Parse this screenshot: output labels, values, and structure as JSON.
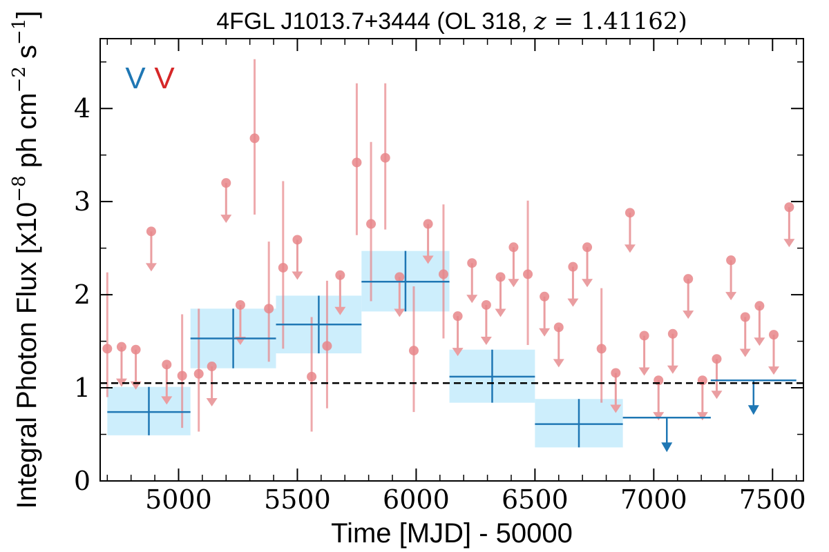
{
  "chart_data": {
    "type": "scatter",
    "title_parts": [
      "4FGL J1013.7+3444 (OL 318, ",
      "z",
      " = 1.41162)"
    ],
    "xlabel": "Time [MJD] - 50000",
    "ylabel_parts": [
      "Integral Photon Flux [x10",
      "−8",
      " ph cm",
      "−2",
      " s",
      "−1",
      "]"
    ],
    "xlim": [
      4670,
      7630
    ],
    "ylim": [
      0,
      4.75
    ],
    "x_ticks": [
      5000,
      5500,
      6000,
      6500,
      7000,
      7500
    ],
    "y_ticks": [
      0,
      1,
      2,
      3,
      4
    ],
    "x_tick_labels": [
      "5000",
      "5500",
      "6000",
      "6500",
      "7000",
      "7500"
    ],
    "y_tick_labels": [
      "0",
      "1",
      "2",
      "3",
      "4"
    ],
    "reference_line": {
      "y": 1.05,
      "style": "dashed",
      "color": "#000000"
    },
    "legend": [
      {
        "label": "V",
        "color": "#1f77b4"
      },
      {
        "label": "V",
        "color": "#d62728"
      }
    ],
    "colors": {
      "binned": "#1f77b4",
      "binned_fill": "#cdeefc",
      "short": "#e8868a",
      "short_arrow": "#ea9ea1"
    },
    "series": [
      {
        "resolution": "binned",
        "detections": [
          {
            "x0": 4700,
            "x1": 5050,
            "y": 0.74,
            "ylo": 0.49,
            "yhi": 1.01
          },
          {
            "x0": 5050,
            "x1": 5410,
            "y": 1.53,
            "ylo": 1.21,
            "yhi": 1.85
          },
          {
            "x0": 5410,
            "x1": 5770,
            "y": 1.68,
            "ylo": 1.37,
            "yhi": 1.99
          },
          {
            "x0": 5770,
            "x1": 6140,
            "y": 2.14,
            "ylo": 1.82,
            "yhi": 2.47
          },
          {
            "x0": 6140,
            "x1": 6500,
            "y": 1.12,
            "ylo": 0.84,
            "yhi": 1.41
          },
          {
            "x0": 6500,
            "x1": 6870,
            "y": 0.61,
            "ylo": 0.36,
            "yhi": 0.88
          }
        ],
        "upper_limits": [
          {
            "x0": 6870,
            "x1": 7240,
            "y": 0.68
          },
          {
            "x0": 7240,
            "x1": 7600,
            "y": 1.08
          }
        ]
      },
      {
        "resolution": "short",
        "detections": [
          {
            "x": 4700,
            "y": 1.42,
            "ylo": 0.9,
            "yhi": 2.24
          },
          {
            "x": 5015,
            "y": 1.13,
            "ylo": 0.57,
            "yhi": 1.79
          },
          {
            "x": 5085,
            "y": 1.15,
            "ylo": 0.53,
            "yhi": 1.85
          },
          {
            "x": 5320,
            "y": 3.68,
            "ylo": 2.86,
            "yhi": 4.53
          },
          {
            "x": 5380,
            "y": 1.85,
            "ylo": 1.28,
            "yhi": 2.57
          },
          {
            "x": 5440,
            "y": 2.29,
            "ylo": 1.42,
            "yhi": 3.22
          },
          {
            "x": 5560,
            "y": 1.12,
            "ylo": 0.53,
            "yhi": 1.76
          },
          {
            "x": 5625,
            "y": 1.45,
            "ylo": 0.78,
            "yhi": 2.15
          },
          {
            "x": 5750,
            "y": 3.42,
            "ylo": 2.64,
            "yhi": 4.27
          },
          {
            "x": 5810,
            "y": 2.76,
            "ylo": 1.93,
            "yhi": 3.64
          },
          {
            "x": 5870,
            "y": 3.47,
            "ylo": 2.7,
            "yhi": 4.27
          },
          {
            "x": 5990,
            "y": 1.4,
            "ylo": 0.74,
            "yhi": 2.09
          },
          {
            "x": 6115,
            "y": 2.22,
            "ylo": 1.53,
            "yhi": 2.97
          },
          {
            "x": 6470,
            "y": 2.22,
            "ylo": 1.46,
            "yhi": 3.01
          },
          {
            "x": 6780,
            "y": 1.42,
            "ylo": 0.84,
            "yhi": 2.07
          }
        ],
        "upper_limits": [
          {
            "x": 4760,
            "y": 1.44
          },
          {
            "x": 4820,
            "y": 1.41
          },
          {
            "x": 4885,
            "y": 2.68
          },
          {
            "x": 4950,
            "y": 1.25
          },
          {
            "x": 5140,
            "y": 1.23
          },
          {
            "x": 5200,
            "y": 3.2
          },
          {
            "x": 5260,
            "y": 1.89
          },
          {
            "x": 5500,
            "y": 2.59
          },
          {
            "x": 5680,
            "y": 2.21
          },
          {
            "x": 5930,
            "y": 2.19
          },
          {
            "x": 6050,
            "y": 2.76
          },
          {
            "x": 6175,
            "y": 1.77
          },
          {
            "x": 6235,
            "y": 2.34
          },
          {
            "x": 6295,
            "y": 1.89
          },
          {
            "x": 6355,
            "y": 2.19
          },
          {
            "x": 6410,
            "y": 2.51
          },
          {
            "x": 6540,
            "y": 1.98
          },
          {
            "x": 6600,
            "y": 1.65
          },
          {
            "x": 6660,
            "y": 2.3
          },
          {
            "x": 6720,
            "y": 2.51
          },
          {
            "x": 6840,
            "y": 1.16
          },
          {
            "x": 6900,
            "y": 2.88
          },
          {
            "x": 6960,
            "y": 1.56
          },
          {
            "x": 7020,
            "y": 1.08
          },
          {
            "x": 7080,
            "y": 1.58
          },
          {
            "x": 7145,
            "y": 2.17
          },
          {
            "x": 7205,
            "y": 1.08
          },
          {
            "x": 7265,
            "y": 1.31
          },
          {
            "x": 7325,
            "y": 2.37
          },
          {
            "x": 7385,
            "y": 1.76
          },
          {
            "x": 7445,
            "y": 1.88
          },
          {
            "x": 7505,
            "y": 1.57
          },
          {
            "x": 7570,
            "y": 2.94
          }
        ]
      }
    ]
  }
}
